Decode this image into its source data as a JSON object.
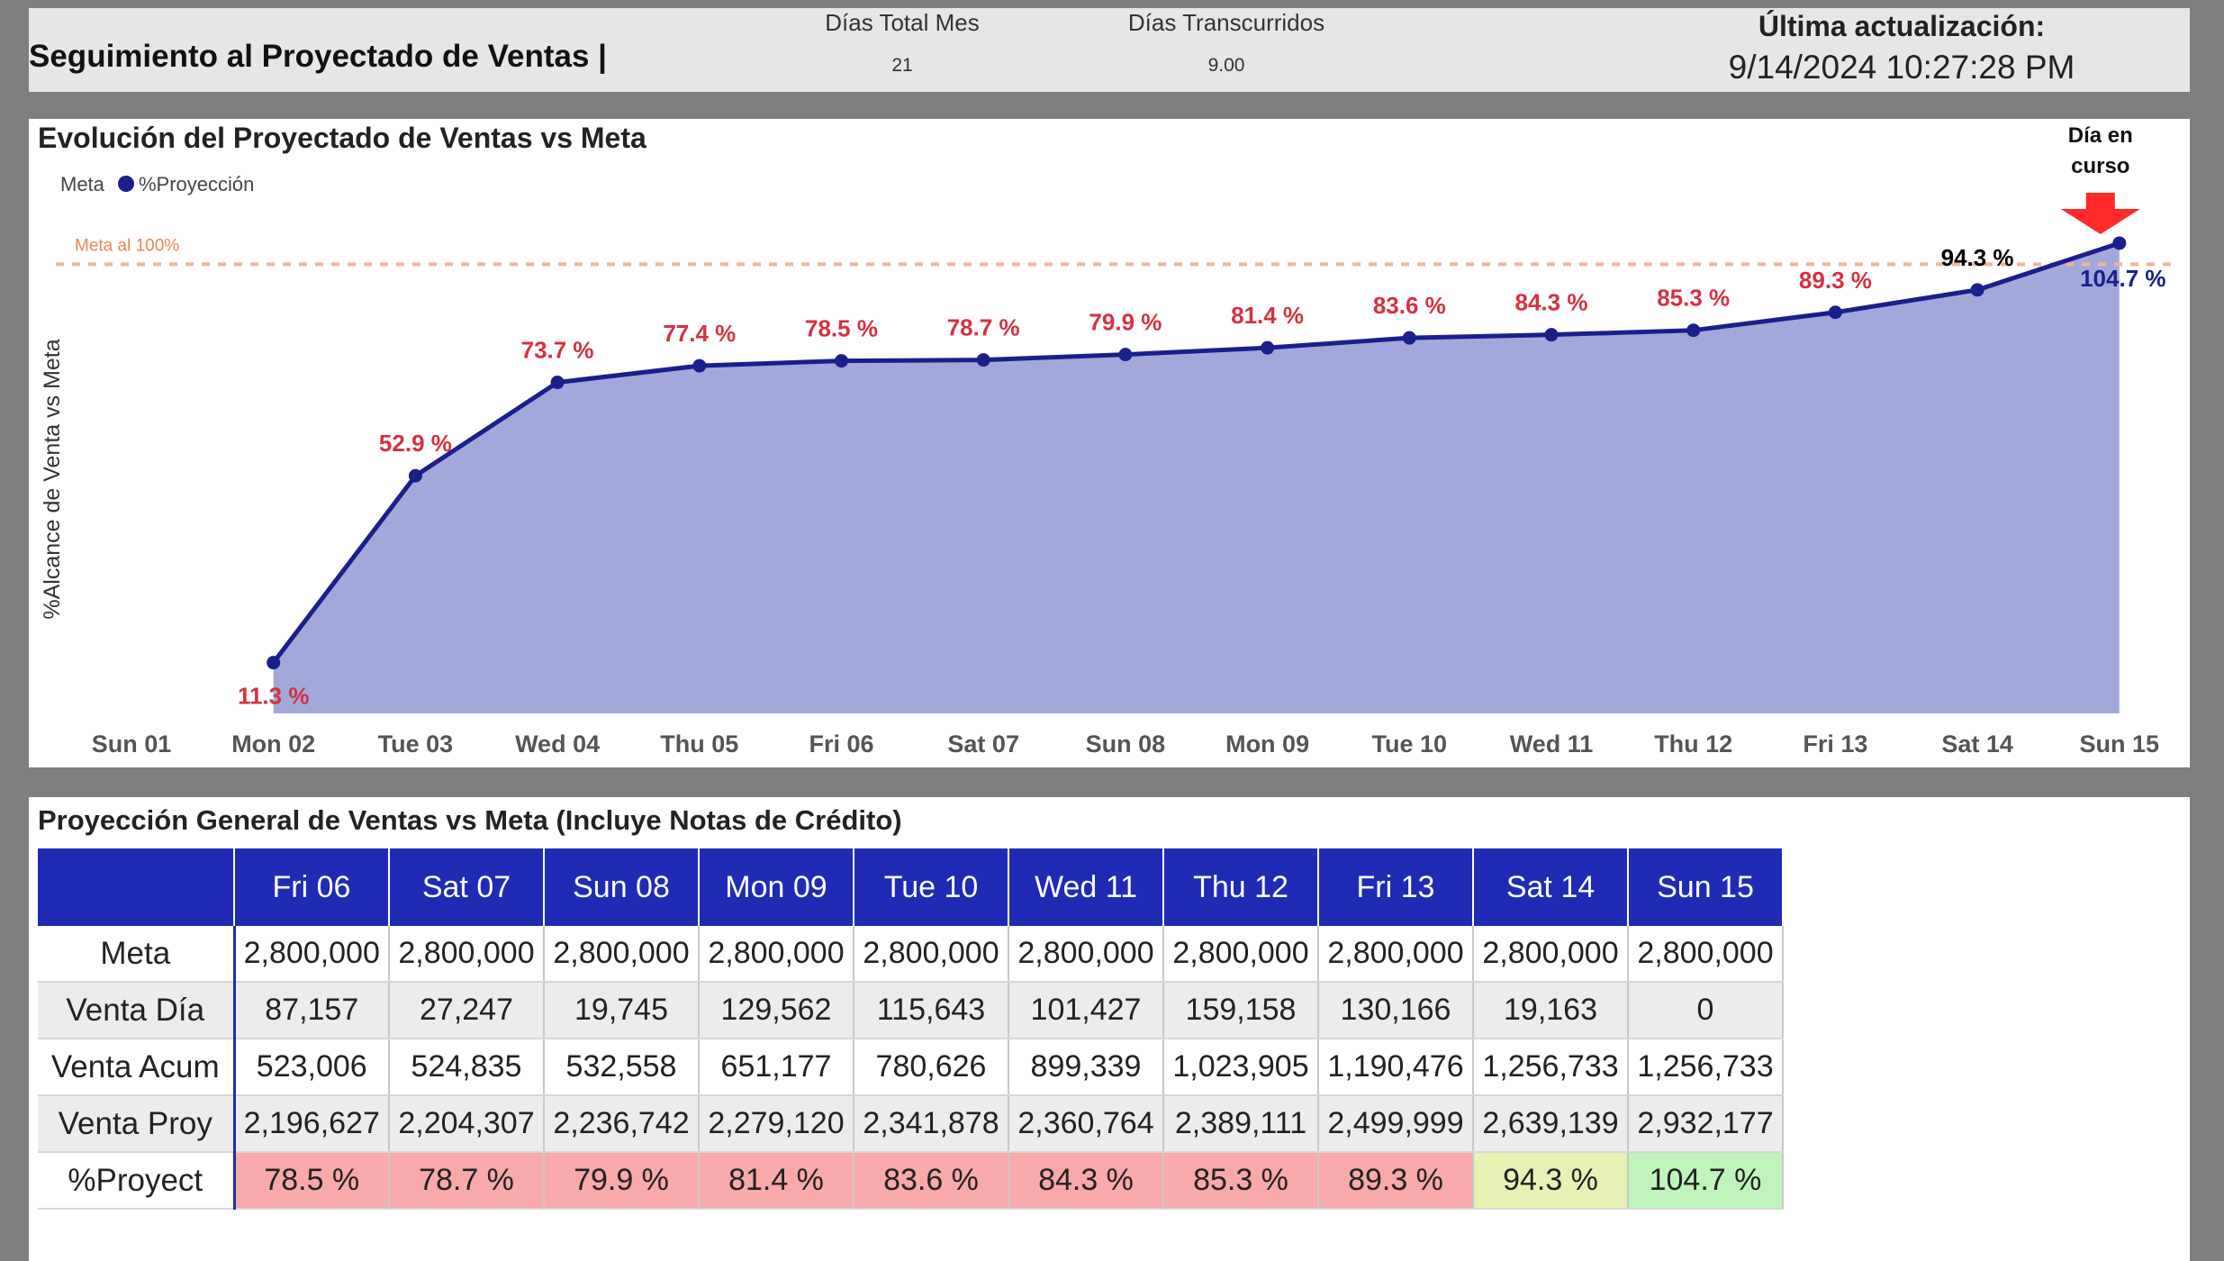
{
  "header": {
    "title": "Seguimiento al Proyectado de Ventas |",
    "days_total_label": "Días Total Mes",
    "days_total_value": "21",
    "days_elapsed_label": "Días Transcurridos",
    "days_elapsed_value": "9.00",
    "last_update_label": "Última actualización:",
    "last_update_value": "9/14/2024 10:27:28 PM"
  },
  "chart_panel": {
    "title": "Evolución del Proyectado de Ventas vs Meta",
    "callout": [
      "Día en",
      "curso"
    ],
    "callout_color": "#ff2a2a"
  },
  "chart_data": {
    "type": "area",
    "categories": [
      "Sun 01",
      "Mon 02",
      "Tue 03",
      "Wed 04",
      "Thu 05",
      "Fri 06",
      "Sat 07",
      "Sun 08",
      "Mon 09",
      "Tue 10",
      "Wed 11",
      "Thu 12",
      "Fri 13",
      "Sat 14",
      "Sun 15"
    ],
    "series": [
      {
        "name": "%Proyección",
        "values": [
          null,
          11.3,
          52.9,
          73.7,
          77.4,
          78.5,
          78.7,
          79.9,
          81.4,
          83.6,
          84.3,
          85.3,
          89.3,
          94.3,
          104.7
        ],
        "labels": [
          "",
          "11.3 %",
          "52.9 %",
          "73.7 %",
          "77.4 %",
          "78.5 %",
          "78.7 %",
          "79.9 %",
          "81.4 %",
          "83.6 %",
          "84.3 %",
          "85.3 %",
          "89.3 %",
          "94.3 %",
          "104.7 %"
        ],
        "color": "#1a1f8c",
        "fill": "#a3a8db"
      },
      {
        "name": "Meta",
        "value": 100,
        "color": "#f2b49a"
      }
    ],
    "meta_label": "Meta al 100%",
    "ylabel": "%Alcance de Venta vs Meta",
    "ylim": [
      0,
      106.7
    ],
    "label_colors": {
      "below_meta": "#d6313f",
      "near_meta": "#000000",
      "above_meta": "#1a1f8c"
    },
    "legend_position": "top-left"
  },
  "table_panel": {
    "title": "Proyección General de Ventas vs Meta (Incluye Notas de Crédito)",
    "columns": [
      "Fri 06",
      "Sat 07",
      "Sun 08",
      "Mon 09",
      "Tue 10",
      "Wed 11",
      "Thu 12",
      "Fri 13",
      "Sat 14",
      "Sun 15"
    ],
    "rows": [
      {
        "label": "Meta",
        "values": [
          "2,800,000",
          "2,800,000",
          "2,800,000",
          "2,800,000",
          "2,800,000",
          "2,800,000",
          "2,800,000",
          "2,800,000",
          "2,800,000",
          "2,800,000"
        ]
      },
      {
        "label": "Venta Día",
        "values": [
          "87,157",
          "27,247",
          "19,745",
          "129,562",
          "115,643",
          "101,427",
          "159,158",
          "130,166",
          "19,163",
          "0"
        ]
      },
      {
        "label": "Venta Acum",
        "values": [
          "523,006",
          "524,835",
          "532,558",
          "651,177",
          "780,626",
          "899,339",
          "1,023,905",
          "1,190,476",
          "1,256,733",
          "1,256,733"
        ]
      },
      {
        "label": "Venta Proy",
        "values": [
          "2,196,627",
          "2,204,307",
          "2,236,742",
          "2,279,120",
          "2,341,878",
          "2,360,764",
          "2,389,111",
          "2,499,999",
          "2,639,139",
          "2,932,177"
        ]
      },
      {
        "label": "%Proyect",
        "values": [
          "78.5 %",
          "78.7 %",
          "79.9 %",
          "81.4 %",
          "83.6 %",
          "84.3 %",
          "85.3 %",
          "89.3 %",
          "94.3 %",
          "104.7 %"
        ]
      }
    ],
    "pct_colors": [
      "#f8a9a9",
      "#f8a9a9",
      "#f8a9a9",
      "#f8a9a9",
      "#f8a9a9",
      "#f8a9a9",
      "#f8a9a9",
      "#f8a9a9",
      "#e6f2b4",
      "#bff5bb"
    ],
    "header_color": "#1f2bb5"
  }
}
